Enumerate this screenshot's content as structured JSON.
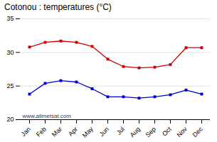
{
  "chart_data": {
    "type": "line",
    "title": "Cotonou : temperatures (°C)",
    "categories": [
      "Jan",
      "Feb",
      "Mar",
      "Apr",
      "May",
      "Jun",
      "Jul",
      "Aug",
      "Sep",
      "Oct",
      "Nov",
      "Dec"
    ],
    "series": [
      {
        "color": "#cc0000",
        "marker": "square",
        "values": [
          30.8,
          31.5,
          31.7,
          31.5,
          30.9,
          29.0,
          27.9,
          27.7,
          27.8,
          28.2,
          30.7,
          30.7
        ]
      },
      {
        "color": "#0000cc",
        "marker": "square",
        "values": [
          23.8,
          25.4,
          25.8,
          25.6,
          24.6,
          23.4,
          23.4,
          23.2,
          23.4,
          23.7,
          24.4,
          23.8
        ]
      }
    ],
    "ylim": [
      20,
      35
    ],
    "yticks": [
      20,
      25,
      30,
      35
    ],
    "grid": true,
    "annotations": [
      "www.allmetsat.com"
    ]
  }
}
